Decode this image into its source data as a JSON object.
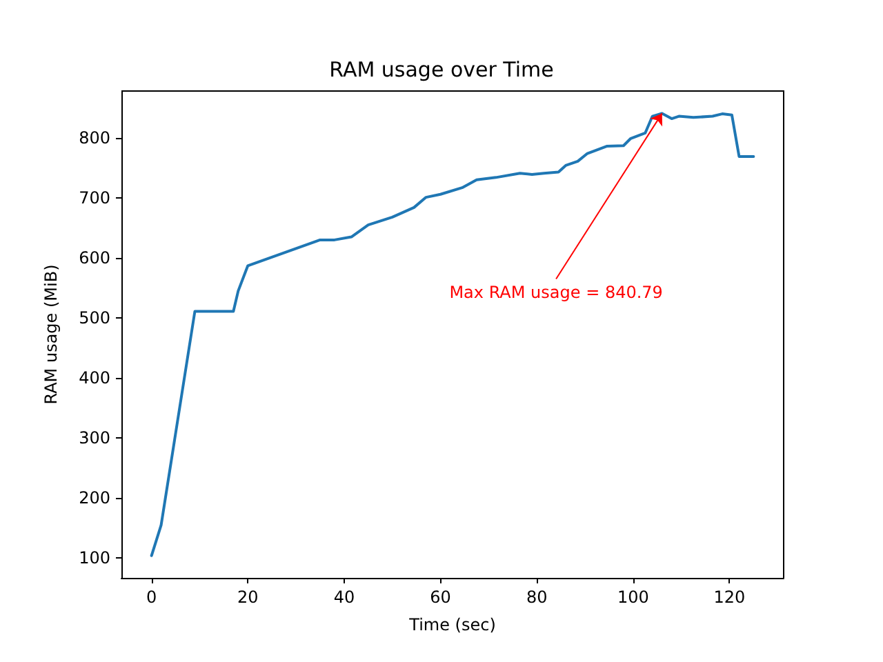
{
  "chart_data": {
    "type": "line",
    "title": "RAM usage over Time",
    "xlabel": "Time (sec)",
    "ylabel": "RAM usage (MiB)",
    "x": [
      0,
      2,
      9,
      17,
      18,
      20,
      35,
      38,
      41.5,
      45,
      50,
      54.5,
      57,
      60,
      64.5,
      67.5,
      71.5,
      76.5,
      79,
      81.5,
      84.5,
      86,
      88.5,
      90.5,
      94.5,
      98,
      99.5,
      102.5,
      104,
      106,
      108,
      109.5,
      112.5,
      116.5,
      118.5,
      120.5,
      122,
      125
    ],
    "series": [
      {
        "color": "#1f77b4",
        "values": [
          104,
          155,
          511,
          511,
          545,
          587,
          630,
          630,
          635,
          655,
          668,
          684,
          701,
          706,
          717,
          730,
          734,
          741,
          739,
          741,
          743,
          754,
          761,
          774,
          786,
          787,
          799,
          808,
          836,
          840.79,
          832,
          836,
          834,
          836,
          840,
          838,
          769,
          769
        ]
      }
    ],
    "xlim": [
      -6.25,
      131.25
    ],
    "ylim": [
      67,
      878
    ],
    "xticks": [
      0,
      20,
      40,
      60,
      80,
      100,
      120
    ],
    "yticks": [
      100,
      200,
      300,
      400,
      500,
      600,
      700,
      800
    ],
    "grid": false,
    "marker": "none",
    "line_style": "solid",
    "annotations": [
      {
        "text": "Max RAM usage = 840.79",
        "x": 106,
        "y": 840.79
      }
    ]
  }
}
